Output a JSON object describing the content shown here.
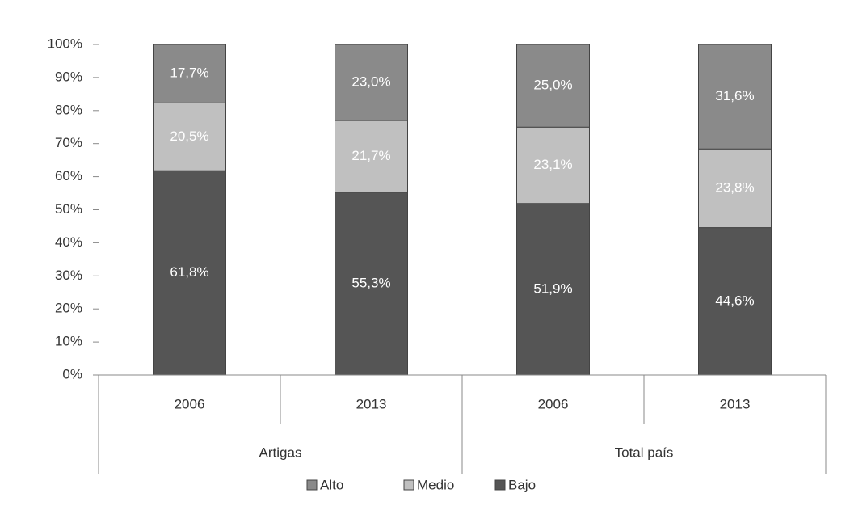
{
  "chart_data": {
    "type": "stacked_bar",
    "categories": [
      "2006",
      "2013",
      "2006",
      "2013"
    ],
    "groups": [
      "Artigas",
      "Total país"
    ],
    "series": [
      {
        "name": "Bajo",
        "color": "#555555",
        "values": [
          61.8,
          55.3,
          51.9,
          44.6
        ],
        "value_labels": [
          "61,8%",
          "55,3%",
          "51,9%",
          "44,6%"
        ]
      },
      {
        "name": "Medio",
        "color": "#c0c0c0",
        "values": [
          20.5,
          21.7,
          23.1,
          23.8
        ],
        "value_labels": [
          "20,5%",
          "21,7%",
          "23,1%",
          "23,8%"
        ]
      },
      {
        "name": "Alto",
        "color": "#8a8a8a",
        "values": [
          17.7,
          23.0,
          25.0,
          31.6
        ],
        "value_labels": [
          "17,7%",
          "23,0%",
          "25,0%",
          "31,6%"
        ]
      }
    ],
    "ylim": [
      0,
      100
    ],
    "yticks": [
      {
        "value": 0,
        "label": "0%"
      },
      {
        "value": 10,
        "label": "10%"
      },
      {
        "value": 20,
        "label": "20%"
      },
      {
        "value": 30,
        "label": "30%"
      },
      {
        "value": 40,
        "label": "40%"
      },
      {
        "value": 50,
        "label": "50%"
      },
      {
        "value": 60,
        "label": "60%"
      },
      {
        "value": 70,
        "label": "70%"
      },
      {
        "value": 80,
        "label": "80%"
      },
      {
        "value": 90,
        "label": "90%"
      },
      {
        "value": 100,
        "label": "100%"
      }
    ],
    "legend": "bottom"
  }
}
